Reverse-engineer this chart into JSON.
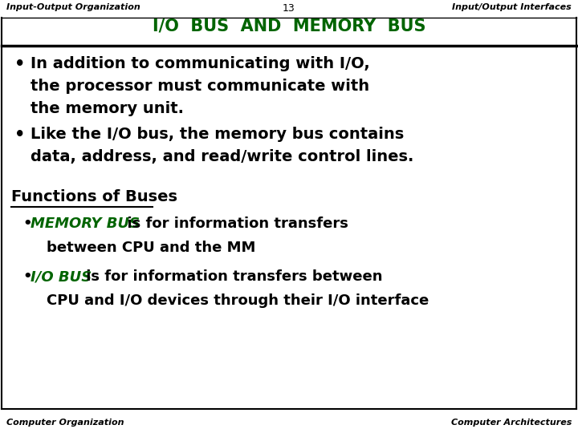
{
  "bg_color": "#ffffff",
  "header_left": "Input-Output Organization",
  "header_center": "13",
  "header_right": "Input/Output Interfaces",
  "title": "I/O  BUS  AND  MEMORY  BUS",
  "title_color": "#006400",
  "footer_left": "Computer Organization",
  "footer_right": "Computer Architectures",
  "bullet1_line1": "In addition to communicating with I/O,",
  "bullet1_line2": "the processor must communicate with",
  "bullet1_line3": "the memory unit.",
  "bullet2_line1": "Like the I/O bus, the memory bus contains",
  "bullet2_line2": "data, address, and read/write control lines.",
  "section_heading": "Functions of Buses",
  "sub_bullet1_bold": "MEMORY BUS",
  "sub_bullet1_rest": "  is for information transfers",
  "sub_bullet1_cont": "between CPU and the MM",
  "sub_bullet2_bold": "I/O BUS",
  "sub_bullet2_rest": " is for information transfers between",
  "sub_bullet2_cont": "CPU and I/O devices through their I/O interface",
  "header_fontsize": 8,
  "title_fontsize": 15,
  "body_fontsize": 14,
  "sub_fontsize": 13,
  "footer_fontsize": 8
}
